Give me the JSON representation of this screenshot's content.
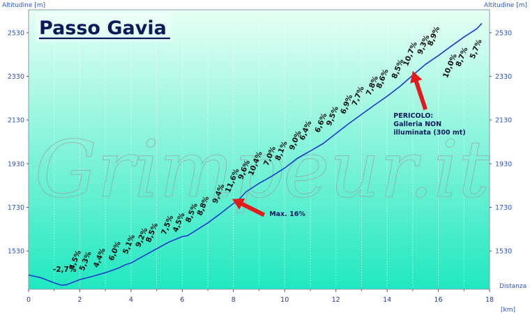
{
  "title": "Passo Gavia",
  "watermark": "Grimpeur.it",
  "colors": {
    "bg_top": "#e6fff4",
    "bg_bottom": "#20e8c0",
    "line": "#1a3acc",
    "arrow": "#e41b1b",
    "text_blue": "#2a55c8"
  },
  "chart_data": {
    "type": "line",
    "title": "Passo Gavia",
    "xlabel": "Distanza",
    "xunit": "[km]",
    "ylabel_left": "Altitudine [m]",
    "ylabel_right": "Altitudine [m]",
    "xlim": [
      0,
      18
    ],
    "ylim": [
      1355,
      2635
    ],
    "x_ticks": [
      0,
      2,
      4,
      6,
      8,
      10,
      12,
      14,
      16,
      18
    ],
    "y_ticks": [
      1530,
      1730,
      1930,
      2130,
      2330,
      2530
    ],
    "grid_vertical": true,
    "series": [
      {
        "x": [
          0,
          0.5,
          1.0,
          1.3,
          1.5,
          2.0,
          2.5,
          3.0,
          3.5,
          3.8,
          4.0,
          4.5,
          5.0,
          5.5,
          6.0,
          6.2,
          6.5,
          7.0,
          7.5,
          8.0,
          8.2,
          8.5,
          9.0,
          9.5,
          10.0,
          10.5,
          11.0,
          11.5,
          12.0,
          12.5,
          13.0,
          13.5,
          14.0,
          14.5,
          15.0,
          15.5,
          16.0,
          16.5,
          17.0,
          17.5,
          17.7
        ],
        "y": [
          1420,
          1407,
          1384,
          1373,
          1376,
          1399,
          1414,
          1431,
          1451,
          1468,
          1475,
          1508,
          1540,
          1572,
          1596,
          1600,
          1622,
          1659,
          1702,
          1748,
          1764,
          1802,
          1840,
          1873,
          1910,
          1955,
          1988,
          2022,
          2068,
          2113,
          2156,
          2198,
          2239,
          2284,
          2335,
          2385,
          2425,
          2468,
          2510,
          2548,
          2572
        ]
      }
    ],
    "grade_labels": [
      {
        "text": "-2,7%",
        "km": 0.95,
        "alt": 1435,
        "rotated": false
      },
      {
        "text": "4,5%",
        "km": 1.75,
        "alt": 1442,
        "rotated": true
      },
      {
        "text": "5,3%",
        "km": 2.15,
        "alt": 1437,
        "rotated": true
      },
      {
        "text": "4,4%",
        "km": 2.7,
        "alt": 1452,
        "rotated": true
      },
      {
        "text": "6,0%",
        "km": 3.3,
        "alt": 1483,
        "rotated": true
      },
      {
        "text": "5,1%",
        "km": 3.85,
        "alt": 1514,
        "rotated": true
      },
      {
        "text": "9,2%",
        "km": 4.35,
        "alt": 1545,
        "rotated": true
      },
      {
        "text": "8,5%",
        "km": 4.75,
        "alt": 1567,
        "rotated": true
      },
      {
        "text": "7,5%",
        "km": 5.35,
        "alt": 1602,
        "rotated": true
      },
      {
        "text": "4,5%",
        "km": 5.8,
        "alt": 1614,
        "rotated": true
      },
      {
        "text": "8,5%",
        "km": 6.3,
        "alt": 1658,
        "rotated": true
      },
      {
        "text": "8,8%",
        "km": 6.75,
        "alt": 1690,
        "rotated": true
      },
      {
        "text": "9,4%",
        "km": 7.35,
        "alt": 1745,
        "rotated": true
      },
      {
        "text": "11,6%",
        "km": 7.85,
        "alt": 1795,
        "rotated": true
      },
      {
        "text": "9,6%",
        "km": 8.35,
        "alt": 1855,
        "rotated": true
      },
      {
        "text": "10,4%",
        "km": 8.75,
        "alt": 1873,
        "rotated": true
      },
      {
        "text": "7,0%",
        "km": 9.35,
        "alt": 1918,
        "rotated": true
      },
      {
        "text": "8,1%",
        "km": 9.8,
        "alt": 1942,
        "rotated": true
      },
      {
        "text": "9,0%",
        "km": 10.35,
        "alt": 1990,
        "rotated": true
      },
      {
        "text": "6,4%",
        "km": 10.75,
        "alt": 2035,
        "rotated": true
      },
      {
        "text": "6,6%",
        "km": 11.35,
        "alt": 2070,
        "rotated": true
      },
      {
        "text": "9,5%",
        "km": 11.8,
        "alt": 2101,
        "rotated": true
      },
      {
        "text": "6,9%",
        "km": 12.35,
        "alt": 2155,
        "rotated": true
      },
      {
        "text": "7,7%",
        "km": 12.8,
        "alt": 2193,
        "rotated": true
      },
      {
        "text": "7,8%",
        "km": 13.35,
        "alt": 2240,
        "rotated": true
      },
      {
        "text": "8,6%",
        "km": 13.75,
        "alt": 2272,
        "rotated": true
      },
      {
        "text": "8,5%",
        "km": 14.35,
        "alt": 2317,
        "rotated": true
      },
      {
        "text": "10,7%",
        "km": 14.8,
        "alt": 2375,
        "rotated": true
      },
      {
        "text": "9,3%",
        "km": 15.35,
        "alt": 2428,
        "rotated": true
      },
      {
        "text": "8,9%",
        "km": 15.75,
        "alt": 2467,
        "rotated": true
      },
      {
        "text": "10,0%",
        "km": 16.35,
        "alt": 2320,
        "rotated": true
      },
      {
        "text": "8,7%",
        "km": 16.85,
        "alt": 2372,
        "rotated": true
      },
      {
        "text": "5,7%",
        "km": 17.4,
        "alt": 2408,
        "rotated": true
      }
    ],
    "annotations": [
      {
        "lines": [
          "Max. 16%"
        ],
        "text_km": 9.4,
        "text_alt": 1690,
        "arrow_from_km": 9.2,
        "arrow_from_alt": 1695,
        "arrow_to_km": 7.95,
        "arrow_to_alt": 1768
      },
      {
        "lines": [
          "PERICOLO:",
          "Galleria NON",
          "illuminata (300 mt)"
        ],
        "text_km": 14.25,
        "text_alt": 2140,
        "arrow_from_km": 15.5,
        "arrow_from_alt": 2178,
        "arrow_to_km": 15.0,
        "arrow_to_alt": 2355
      }
    ]
  }
}
